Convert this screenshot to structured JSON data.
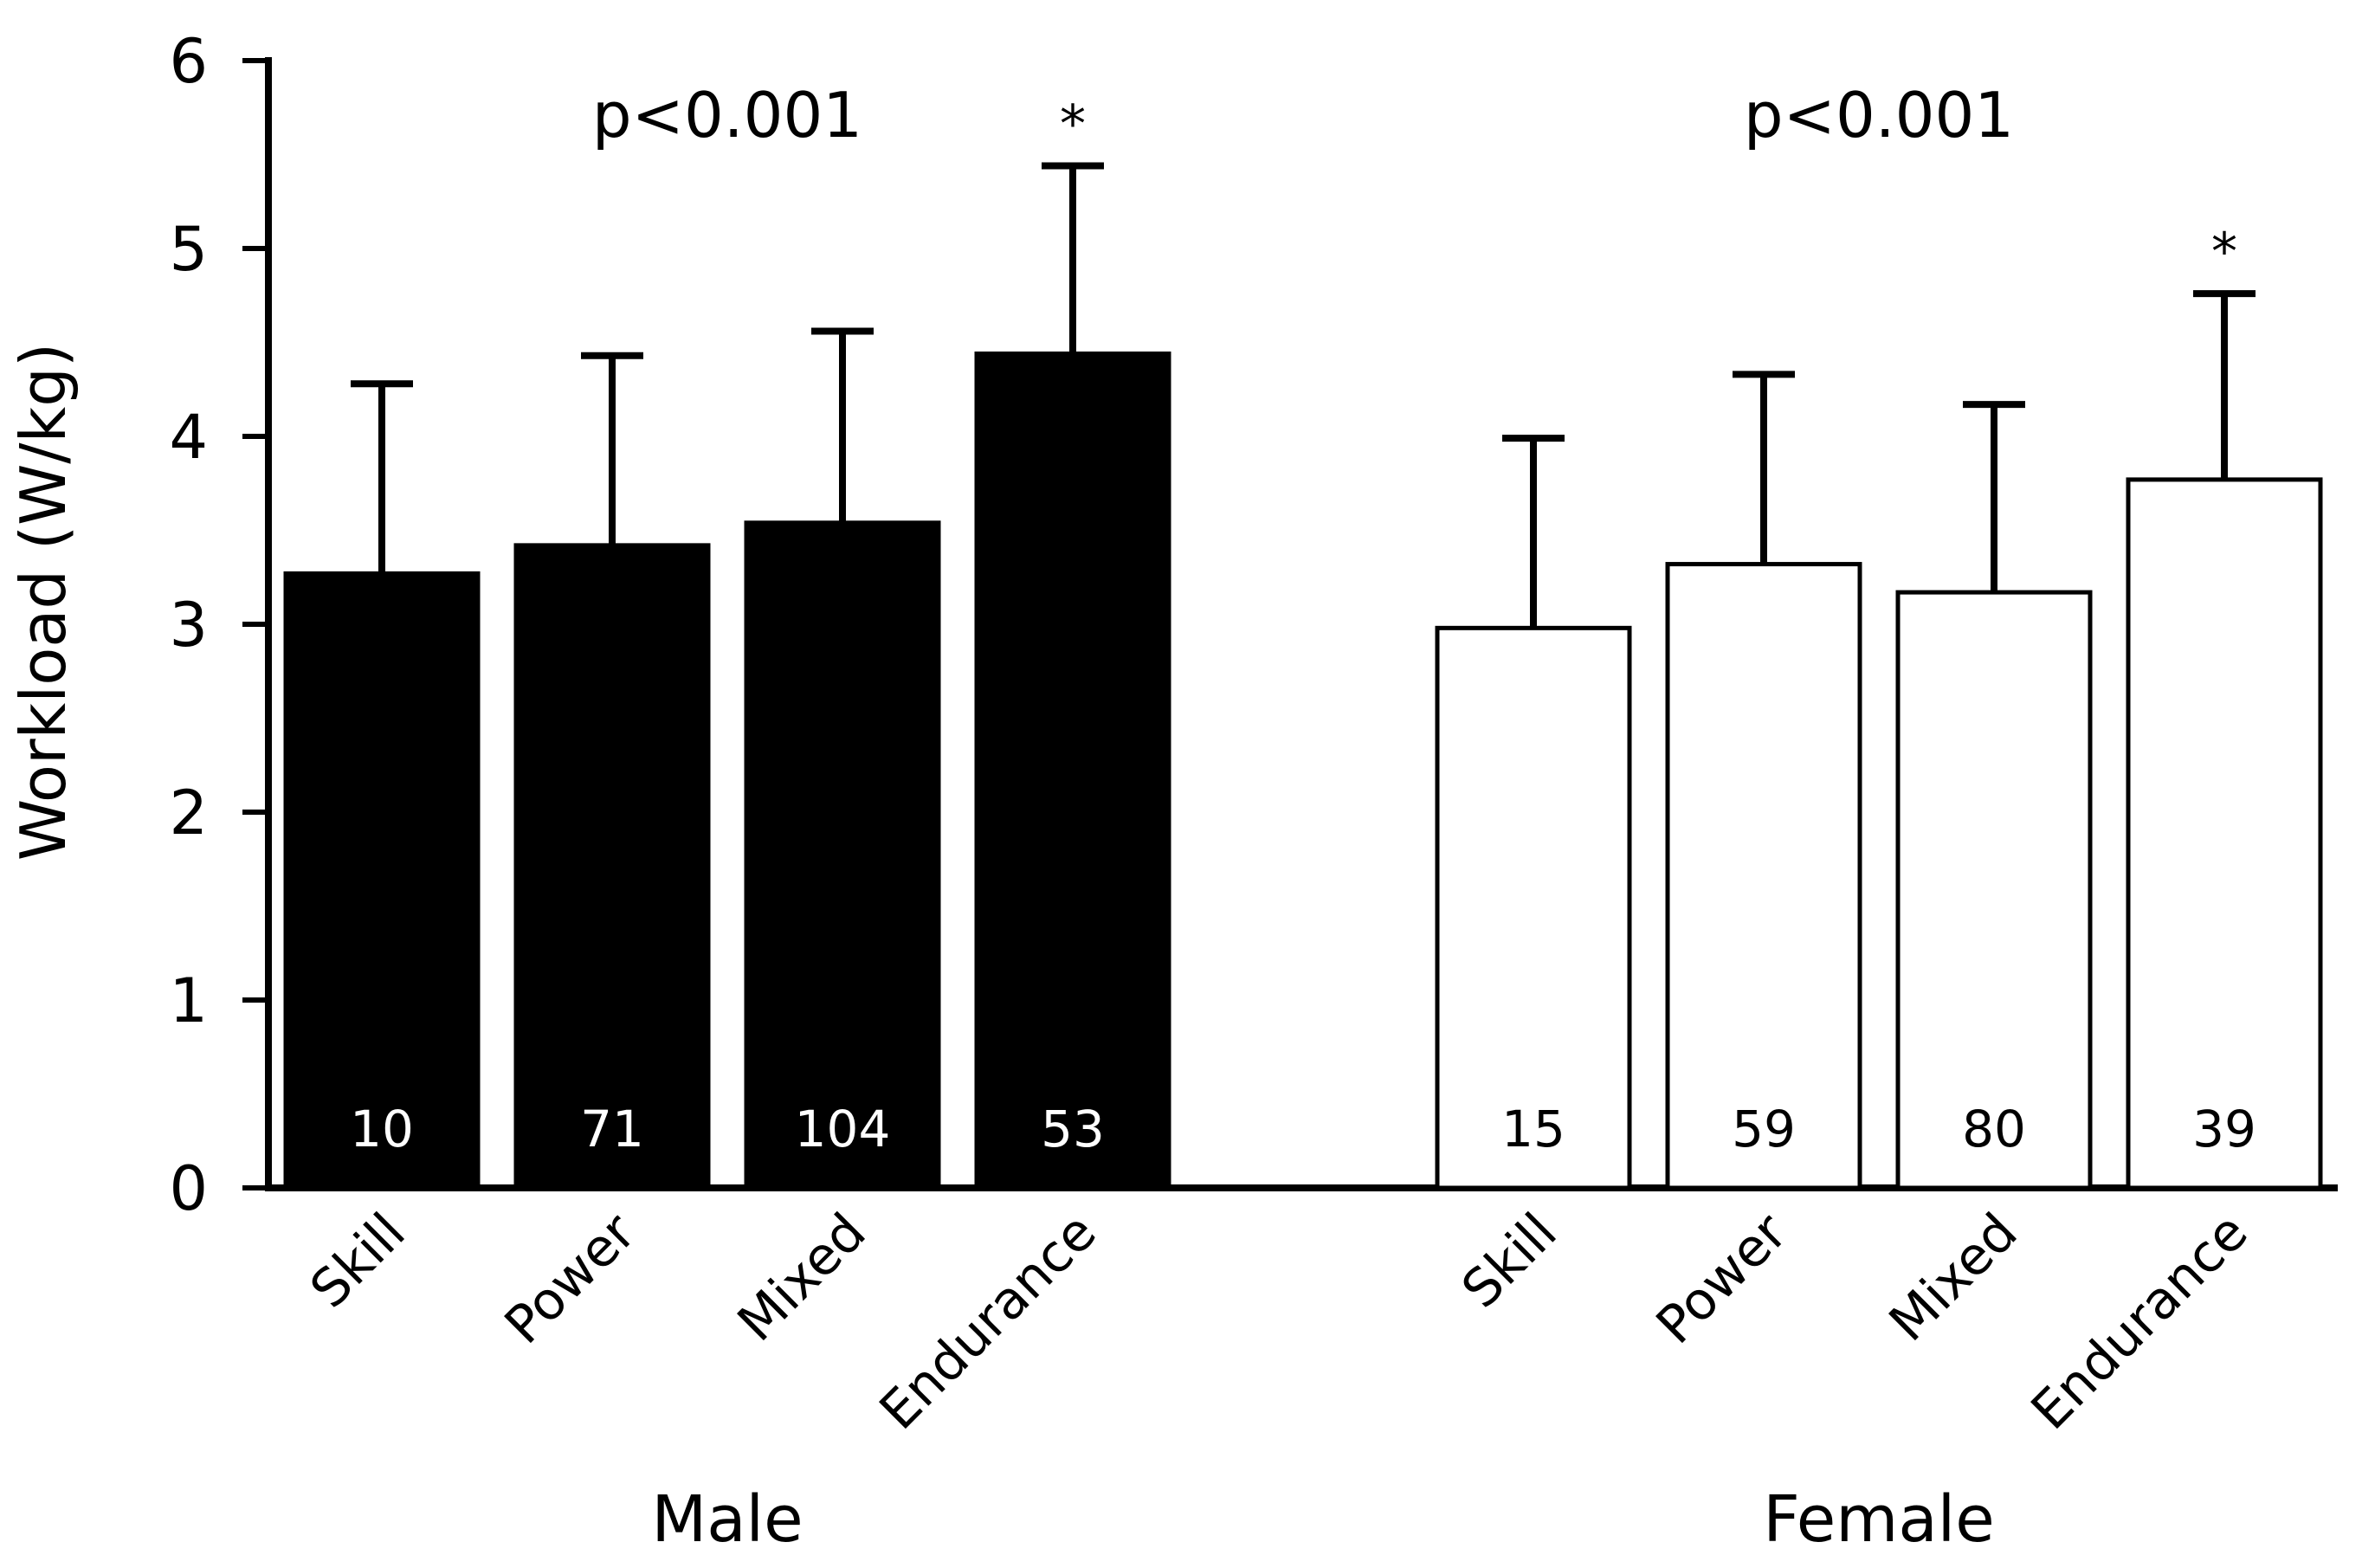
{
  "chart_data": {
    "type": "bar",
    "ylabel": "Workload (W/kg)",
    "ylim": [
      0,
      6
    ],
    "yticks": [
      0,
      1,
      2,
      3,
      4,
      5,
      6
    ],
    "error_bars": "upper, one SD",
    "groups": [
      {
        "name": "Male",
        "fill": "#000000",
        "n_text_color": "#ffffff",
        "p_value": "p<0.001",
        "categories": [
          "Skill",
          "Power",
          "Mixed",
          "Endurance"
        ],
        "values": [
          3.27,
          3.42,
          3.54,
          4.44
        ],
        "errors": [
          1.01,
          1.01,
          1.02,
          1.0
        ],
        "n": [
          "10",
          "71",
          "104",
          "53"
        ],
        "significance": [
          "",
          "",
          "",
          "*"
        ]
      },
      {
        "name": "Female",
        "fill": "#ffffff",
        "n_text_color": "#000000",
        "p_value": "p<0.001",
        "categories": [
          "Skill",
          "Power",
          "Mixed",
          "Endurance"
        ],
        "values": [
          2.98,
          3.32,
          3.17,
          3.77
        ],
        "errors": [
          1.01,
          1.01,
          1.0,
          0.99
        ],
        "n": [
          "15",
          "59",
          "80",
          "39"
        ],
        "significance": [
          "",
          "",
          "",
          "*"
        ]
      }
    ]
  }
}
